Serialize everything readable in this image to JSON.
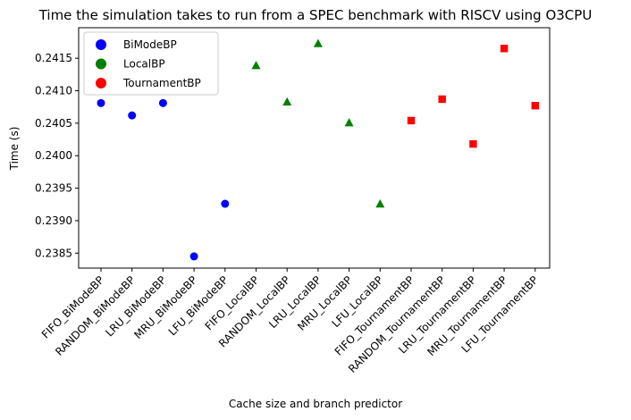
{
  "chart_data": {
    "type": "scatter",
    "title": "Time the simulation takes to run from a SPEC benchmark with RISCV using O3CPU",
    "xlabel": "Cache size and branch predictor",
    "ylabel": "Time (s)",
    "categories": [
      "FIFO_BiModeBP",
      "RANDOM_BiModeBP",
      "LRU_BiModeBP",
      "MRU_BiModeBP",
      "LFU_BiModeBP",
      "FIFO_LocalBP",
      "RANDOM_LocalBP",
      "LRU_LocalBP",
      "MRU_LocalBP",
      "LFU_LocalBP",
      "FIFO_TournamentBP",
      "RANDOM_TournamentBP",
      "LRU_TournamentBP",
      "MRU_TournamentBP",
      "LFU_TournamentBP"
    ],
    "ylim": [
      0.23827,
      0.24197
    ],
    "yticks": [
      0.2385,
      0.239,
      0.2395,
      0.24,
      0.2405,
      0.241,
      0.2415
    ],
    "ytick_labels": [
      "0.2385",
      "0.2390",
      "0.2395",
      "0.2400",
      "0.2405",
      "0.2410",
      "0.2415"
    ],
    "legend_position": "upper-left",
    "grid": false,
    "series": [
      {
        "name": "BiModeBP",
        "color": "#0000ff",
        "marker": "circle",
        "points": [
          {
            "x": "FIFO_BiModeBP",
            "y": 0.24081
          },
          {
            "x": "RANDOM_BiModeBP",
            "y": 0.24062
          },
          {
            "x": "LRU_BiModeBP",
            "y": 0.24081
          },
          {
            "x": "MRU_BiModeBP",
            "y": 0.23845
          },
          {
            "x": "LFU_BiModeBP",
            "y": 0.23926
          }
        ]
      },
      {
        "name": "LocalBP",
        "color": "#008000",
        "marker": "triangle",
        "points": [
          {
            "x": "FIFO_LocalBP",
            "y": 0.24139
          },
          {
            "x": "RANDOM_LocalBP",
            "y": 0.24083
          },
          {
            "x": "LRU_LocalBP",
            "y": 0.24173
          },
          {
            "x": "MRU_LocalBP",
            "y": 0.24051
          },
          {
            "x": "LFU_LocalBP",
            "y": 0.23926
          }
        ]
      },
      {
        "name": "TournamentBP",
        "color": "#ff0000",
        "marker": "square",
        "points": [
          {
            "x": "FIFO_TournamentBP",
            "y": 0.24054
          },
          {
            "x": "RANDOM_TournamentBP",
            "y": 0.24087
          },
          {
            "x": "LRU_TournamentBP",
            "y": 0.24018
          },
          {
            "x": "MRU_TournamentBP",
            "y": 0.24165
          },
          {
            "x": "LFU_TournamentBP",
            "y": 0.24077
          }
        ]
      }
    ]
  }
}
